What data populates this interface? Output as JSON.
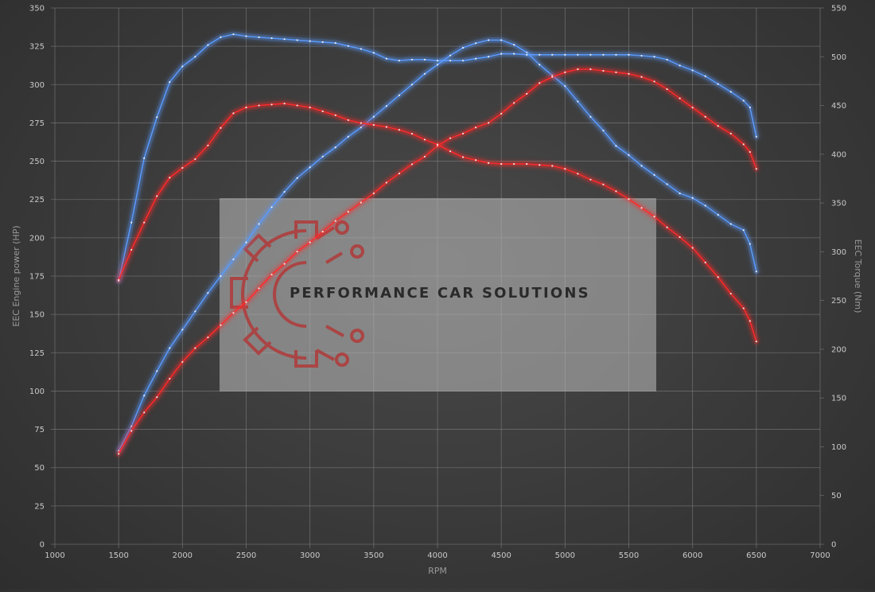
{
  "brand": {
    "name": "PERFORMANCE CAR SOLUTIONS"
  },
  "chart_data": {
    "type": "line",
    "title": "",
    "xlabel": "RPM",
    "ylabel_left": "EEC Engine power (HP)",
    "ylabel_right": "EEC Torque (Nm)",
    "xlim": [
      1000,
      7000
    ],
    "ylim_left": [
      0,
      350
    ],
    "ylim_right": [
      0,
      550
    ],
    "x_ticks": [
      "1000",
      "1500",
      "2000",
      "2500",
      "3000",
      "3500",
      "4000",
      "4500",
      "5000",
      "5500",
      "6000",
      "6500",
      "7000"
    ],
    "y_left_ticks": [
      "0",
      "25",
      "50",
      "75",
      "100",
      "125",
      "150",
      "175",
      "200",
      "225",
      "250",
      "275",
      "300",
      "325",
      "350"
    ],
    "y_right_ticks": [
      "0",
      "50",
      "100",
      "150",
      "200",
      "250",
      "300",
      "350",
      "400",
      "450",
      "500",
      "550"
    ],
    "grid": true,
    "legend": "none",
    "colors": {
      "tuned": "#5b9bff",
      "stock": "#ff2a2a",
      "grid": "#7a7a7a"
    },
    "series": [
      {
        "color": "#5b9bff",
        "axis": "left",
        "x": [
          1500,
          1600,
          1700,
          1800,
          1900,
          2000,
          2100,
          2200,
          2300,
          2400,
          2500,
          2600,
          2700,
          2800,
          2900,
          3000,
          3100,
          3200,
          3300,
          3400,
          3500,
          3600,
          3700,
          3800,
          3900,
          4000,
          4100,
          4200,
          4300,
          4400,
          4500,
          4600,
          4700,
          4800,
          4900,
          5000,
          5100,
          5200,
          5300,
          5400,
          5500,
          5600,
          5700,
          5800,
          5900,
          6000,
          6100,
          6200,
          6300,
          6400,
          6450,
          6500
        ],
        "y": [
          61,
          77,
          97,
          113,
          128,
          140,
          152,
          164,
          175,
          186,
          197,
          209,
          220,
          230,
          239,
          246,
          253,
          259,
          266,
          272,
          279,
          286,
          293,
          300,
          307,
          313,
          319,
          324,
          327,
          329,
          329,
          326,
          321,
          313,
          306,
          299,
          289,
          279,
          270,
          260,
          254,
          247,
          241,
          235,
          229,
          226,
          221,
          215,
          209,
          205,
          196,
          178
        ]
      },
      {
        "color": "#5b9bff",
        "axis": "right",
        "x": [
          1500,
          1600,
          1700,
          1800,
          1900,
          2000,
          2100,
          2200,
          2300,
          2400,
          2500,
          2600,
          2700,
          2800,
          2900,
          3000,
          3100,
          3200,
          3300,
          3400,
          3500,
          3600,
          3700,
          3800,
          3900,
          4000,
          4100,
          4200,
          4300,
          4400,
          4500,
          4600,
          4700,
          4800,
          4900,
          5000,
          5100,
          5200,
          5300,
          5400,
          5500,
          5600,
          5700,
          5800,
          5900,
          6000,
          6100,
          6200,
          6300,
          6400,
          6450,
          6500
        ],
        "y": [
          270,
          330,
          396,
          438,
          474,
          490,
          500,
          512,
          520,
          523,
          521,
          520,
          519,
          518,
          517,
          516,
          515,
          514,
          511,
          508,
          504,
          498,
          496,
          497,
          497,
          496,
          496,
          496,
          498,
          500,
          503,
          503,
          502,
          502,
          502,
          502,
          502,
          502,
          502,
          502,
          502,
          501,
          500,
          497,
          491,
          486,
          480,
          472,
          464,
          455,
          448,
          418
        ]
      },
      {
        "color": "#ff2a2a",
        "axis": "left",
        "x": [
          1500,
          1600,
          1700,
          1800,
          1900,
          2000,
          2100,
          2200,
          2300,
          2400,
          2500,
          2600,
          2700,
          2800,
          2900,
          3000,
          3100,
          3200,
          3300,
          3400,
          3500,
          3600,
          3700,
          3800,
          3900,
          4000,
          4100,
          4200,
          4300,
          4400,
          4500,
          4600,
          4700,
          4800,
          4900,
          5000,
          5100,
          5200,
          5300,
          5400,
          5500,
          5600,
          5700,
          5800,
          5900,
          6000,
          6100,
          6200,
          6300,
          6400,
          6450,
          6500
        ],
        "y": [
          59,
          74,
          86,
          96,
          108,
          119,
          128,
          135,
          143,
          151,
          158,
          167,
          176,
          183,
          191,
          197,
          204,
          211,
          217,
          223,
          229,
          236,
          242,
          248,
          253,
          260,
          265,
          268,
          272,
          275,
          281,
          288,
          294,
          301,
          305,
          308,
          310,
          310,
          309,
          308,
          307,
          305,
          302,
          297,
          291,
          285,
          279,
          273,
          268,
          261,
          256,
          245
        ]
      },
      {
        "color": "#ff2a2a",
        "axis": "right",
        "x": [
          1500,
          1600,
          1700,
          1800,
          1900,
          2000,
          2100,
          2200,
          2300,
          2400,
          2500,
          2600,
          2700,
          2800,
          2900,
          3000,
          3100,
          3200,
          3300,
          3400,
          3500,
          3600,
          3700,
          3800,
          3900,
          4000,
          4100,
          4200,
          4300,
          4400,
          4500,
          4600,
          4700,
          4800,
          4900,
          5000,
          5100,
          5200,
          5300,
          5400,
          5500,
          5600,
          5700,
          5800,
          5900,
          6000,
          6100,
          6200,
          6300,
          6400,
          6450,
          6500
        ],
        "y": [
          271,
          302,
          330,
          357,
          376,
          386,
          395,
          409,
          427,
          442,
          448,
          450,
          451,
          452,
          450,
          448,
          444,
          440,
          435,
          432,
          430,
          428,
          425,
          421,
          415,
          410,
          403,
          397,
          394,
          391,
          390,
          390,
          390,
          389,
          388,
          385,
          380,
          374,
          369,
          362,
          354,
          345,
          336,
          325,
          315,
          304,
          289,
          274,
          257,
          242,
          229,
          208
        ]
      }
    ]
  }
}
